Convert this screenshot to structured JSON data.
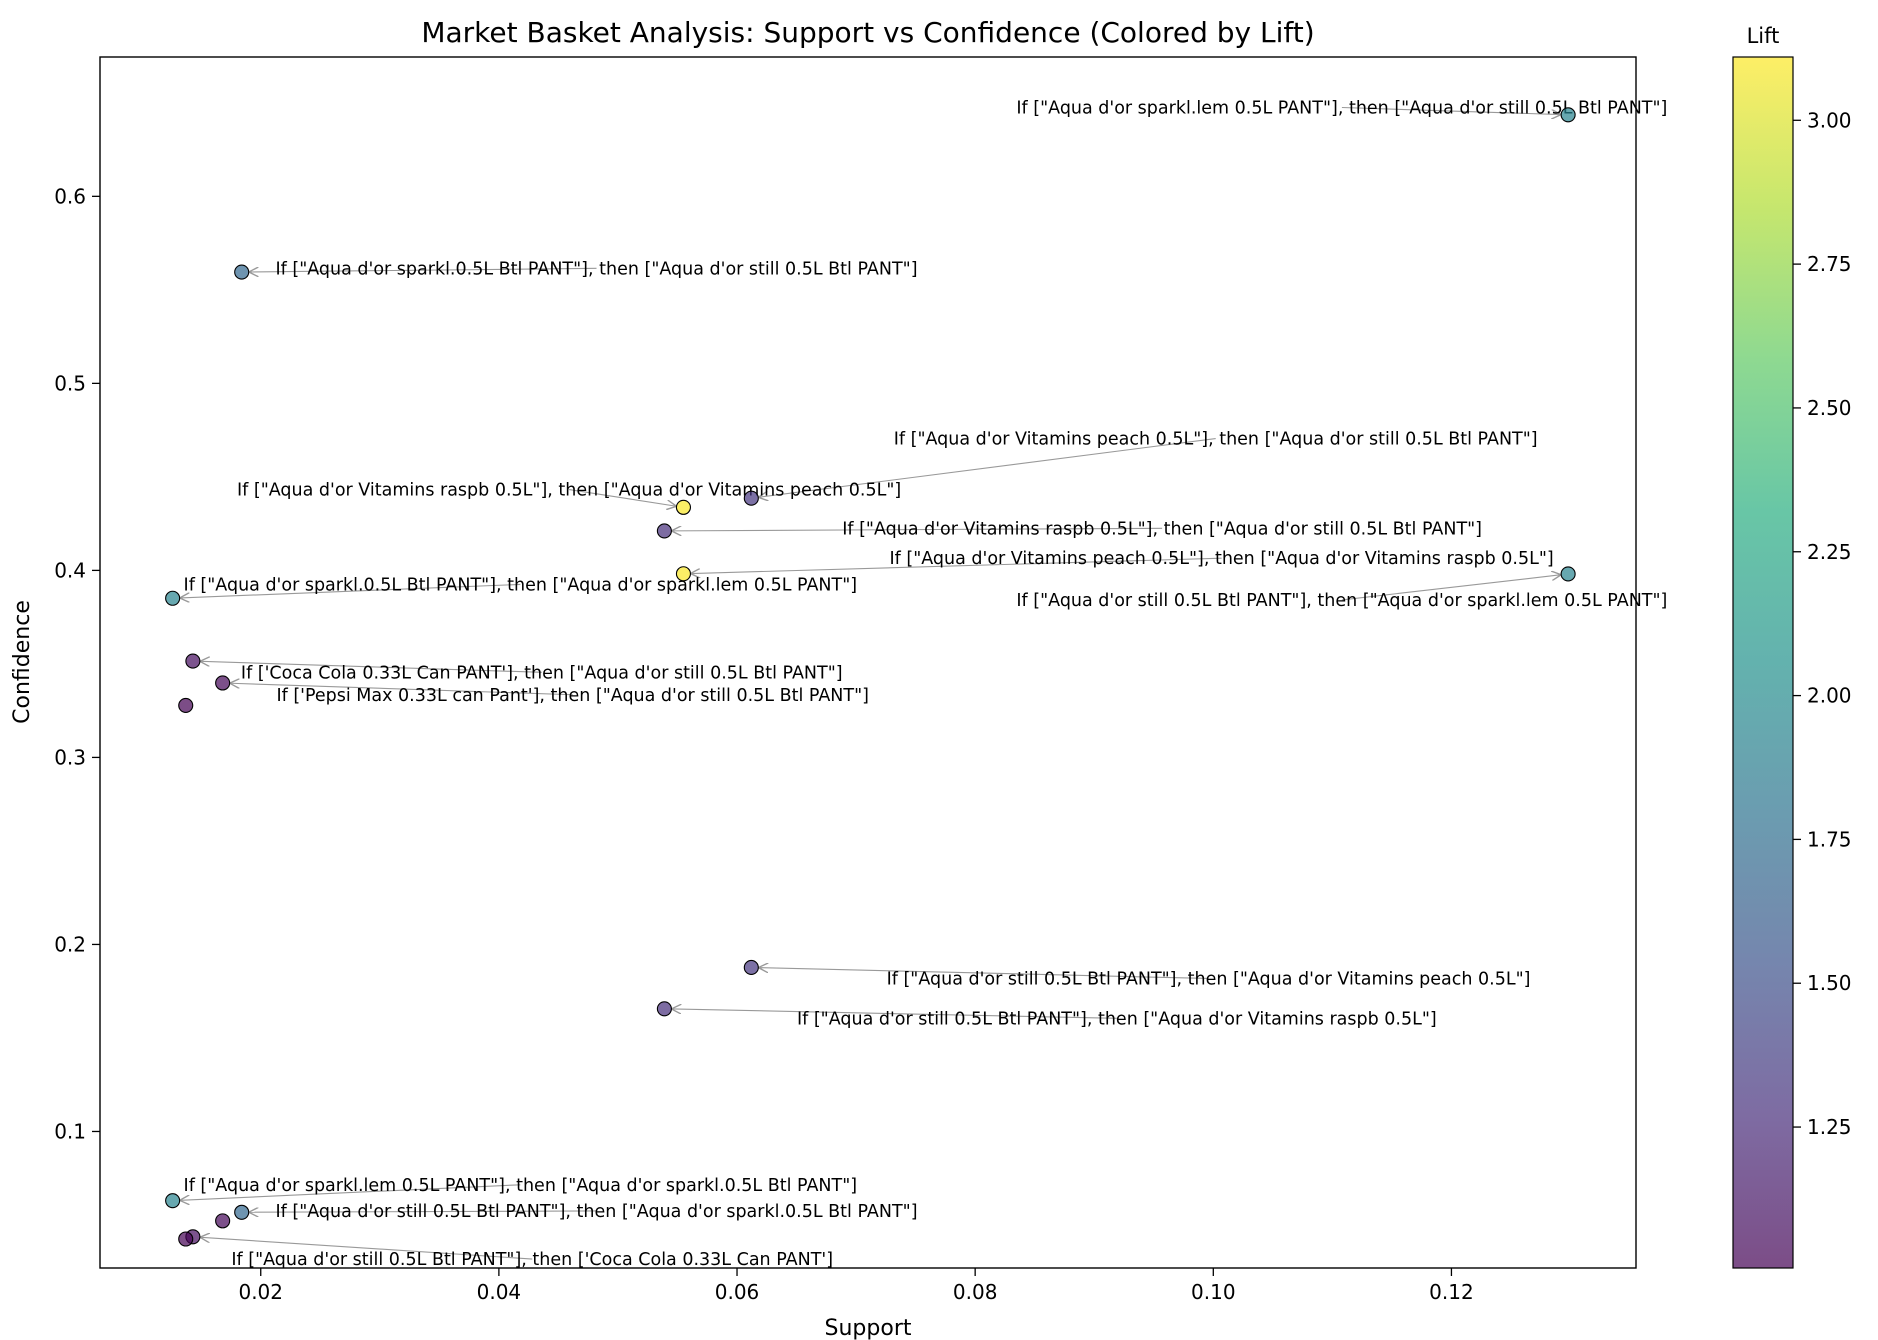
{
  "chart_data": {
    "type": "scatter",
    "title": "Market Basket Analysis: Support vs Confidence (Colored by Lift)",
    "xlabel": "Support",
    "ylabel": "Confidence",
    "xlim": [
      0.0065,
      0.1355
    ],
    "ylim": [
      0.027,
      0.6745
    ],
    "x_ticks": [
      0.02,
      0.04,
      0.06,
      0.08,
      0.1,
      0.12
    ],
    "x_tick_labels": [
      "0.02",
      "0.04",
      "0.06",
      "0.08",
      "0.10",
      "0.12"
    ],
    "y_ticks": [
      0.1,
      0.2,
      0.3,
      0.4,
      0.5,
      0.6
    ],
    "y_tick_labels": [
      "0.1",
      "0.2",
      "0.3",
      "0.4",
      "0.5",
      "0.6"
    ],
    "grid": false,
    "colorbar": {
      "label": "Lift",
      "colormap": "viridis",
      "alpha": 0.7,
      "range": [
        1.005,
        3.11
      ],
      "ticks": [
        1.25,
        1.5,
        1.75,
        2.0,
        2.25,
        2.5,
        2.75,
        3.0
      ],
      "tick_labels": [
        "1.25",
        "1.50",
        "1.75",
        "2.00",
        "2.25",
        "2.50",
        "2.75",
        "3.00"
      ]
    },
    "points": [
      {
        "support": 0.1298,
        "confidence": 0.6436,
        "lift": 1.95,
        "label": "If [\"Aqua d'or sparkl.lem 0.5L PANT\"], then [\"Aqua d'or still 0.5L Btl PANT\"]",
        "label_x": 0.1108,
        "label_y": 0.6475
      },
      {
        "support": 0.0184,
        "confidence": 0.5595,
        "lift": 1.7,
        "label": "If [\"Aqua d'or sparkl.0.5L Btl PANT\"], then [\"Aqua d'or still 0.5L Btl PANT\"]",
        "label_x": 0.0482,
        "label_y": 0.5615
      },
      {
        "support": 0.0612,
        "confidence": 0.4386,
        "lift": 1.33,
        "label": "If [\"Aqua d'or Vitamins peach 0.5L\"], then [\"Aqua d'or still 0.5L Btl PANT\"]",
        "label_x": 0.1002,
        "label_y": 0.4705
      },
      {
        "support": 0.0555,
        "confidence": 0.4337,
        "lift": 3.1,
        "label": "If [\"Aqua d'or Vitamins raspb 0.5L\"], then [\"Aqua d'or Vitamins peach 0.5L\"]",
        "label_x": 0.0459,
        "label_y": 0.4432
      },
      {
        "support": 0.0539,
        "confidence": 0.4211,
        "lift": 1.28,
        "label": "If [\"Aqua d'or Vitamins raspb 0.5L\"], then [\"Aqua d'or still 0.5L Btl PANT\"]",
        "label_x": 0.0957,
        "label_y": 0.4225
      },
      {
        "support": 0.0555,
        "confidence": 0.3982,
        "lift": 3.1,
        "label": "If [\"Aqua d'or Vitamins peach 0.5L\"], then [\"Aqua d'or Vitamins raspb 0.5L\"]",
        "label_x": 0.1007,
        "label_y": 0.4065
      },
      {
        "support": 0.1298,
        "confidence": 0.3981,
        "lift": 1.95,
        "label": "If [\"Aqua d'or still 0.5L Btl PANT\"], then [\"Aqua d'or sparkl.lem 0.5L PANT\"]",
        "label_x": 0.1108,
        "label_y": 0.3842
      },
      {
        "support": 0.0126,
        "confidence": 0.3851,
        "lift": 1.95,
        "label": "If [\"Aqua d'or sparkl.0.5L Btl PANT\"], then [\"Aqua d'or sparkl.lem 0.5L PANT\"]",
        "label_x": 0.0418,
        "label_y": 0.3925
      },
      {
        "support": 0.0143,
        "confidence": 0.3515,
        "lift": 1.07,
        "label": "If ['Coca Cola 0.33L Can PANT'], then [\"Aqua d'or still 0.5L Btl PANT\"]",
        "label_x": 0.0436,
        "label_y": 0.3455
      },
      {
        "support": 0.0168,
        "confidence": 0.3398,
        "lift": 1.03,
        "label": "If ['Pepsi Max 0.33L can Pant'], then [\"Aqua d'or still 0.5L Btl PANT\"]",
        "label_x": 0.0462,
        "label_y": 0.3335
      },
      {
        "support": 0.0137,
        "confidence": 0.3278,
        "lift": 1.0,
        "label": "",
        "label_x": 0,
        "label_y": 0
      },
      {
        "support": 0.0612,
        "confidence": 0.1877,
        "lift": 1.33,
        "label": "If [\"Aqua d'or still 0.5L Btl PANT\"], then [\"Aqua d'or Vitamins peach 0.5L\"]",
        "label_x": 0.0996,
        "label_y": 0.1818
      },
      {
        "support": 0.0539,
        "confidence": 0.1656,
        "lift": 1.28,
        "label": "If [\"Aqua d'or still 0.5L Btl PANT\"], then [\"Aqua d'or Vitamins raspb 0.5L\"]",
        "label_x": 0.0919,
        "label_y": 0.1605
      },
      {
        "support": 0.0126,
        "confidence": 0.063,
        "lift": 1.95,
        "label": "If [\"Aqua d'or sparkl.lem 0.5L PANT\"], then [\"Aqua d'or sparkl.0.5L Btl PANT\"]",
        "label_x": 0.0418,
        "label_y": 0.0715
      },
      {
        "support": 0.0184,
        "confidence": 0.0568,
        "lift": 1.7,
        "label": "If [\"Aqua d'or still 0.5L Btl PANT\"], then [\"Aqua d'or sparkl.0.5L Btl PANT\"]",
        "label_x": 0.0482,
        "label_y": 0.0575
      },
      {
        "support": 0.0168,
        "confidence": 0.0522,
        "lift": 1.03,
        "label": "",
        "label_x": 0,
        "label_y": 0
      },
      {
        "support": 0.0143,
        "confidence": 0.0437,
        "lift": 1.07,
        "label": "If [\"Aqua d'or still 0.5L Btl PANT\"], then ['Coca Cola 0.33L Can PANT']",
        "label_x": 0.0428,
        "label_y": 0.0318
      },
      {
        "support": 0.0137,
        "confidence": 0.0425,
        "lift": 1.0,
        "label": "",
        "label_x": 0,
        "label_y": 0
      }
    ]
  }
}
